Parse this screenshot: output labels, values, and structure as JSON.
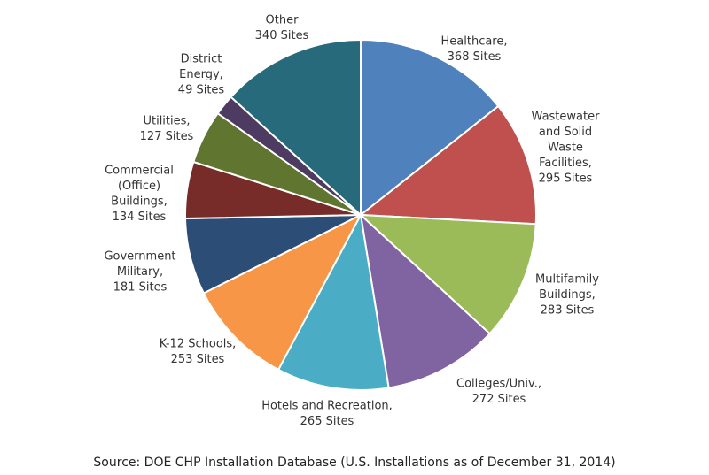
{
  "chart_data": {
    "type": "pie",
    "categories": [
      [
        "Healthcare,"
      ],
      [
        "Wastewater",
        "and Solid",
        "Waste",
        "Facilities,"
      ],
      [
        "Multifamily",
        "Buildings,"
      ],
      [
        "Colleges/Univ.,"
      ],
      [
        "Hotels and Recreation,"
      ],
      [
        "K-12 Schools,"
      ],
      [
        "Government",
        "Military,"
      ],
      [
        "Commercial",
        "(Office)",
        "Buildings,"
      ],
      [
        "Utilities,"
      ],
      [
        "District",
        "Energy,"
      ],
      [
        "Other"
      ]
    ],
    "values": [
      368,
      295,
      283,
      272,
      265,
      253,
      181,
      134,
      127,
      49,
      340
    ],
    "value_labels": [
      "368 Sites",
      "295 Sites",
      "283 Sites",
      "272 Sites",
      "265 Sites",
      "253 Sites",
      "181 Sites",
      "134 Sites",
      "127 Sites",
      "49 Sites",
      "340 Sites"
    ],
    "colors": [
      "#4f81bd",
      "#c0504d",
      "#9bbb59",
      "#8064a2",
      "#4bacc6",
      "#f79646",
      "#2c4d75",
      "#772c2a",
      "#5f7530",
      "#4d3b62",
      "#276a7c"
    ],
    "source": "Source: DOE CHP Installation Database (U.S. Installations as of December 31, 2014)"
  }
}
